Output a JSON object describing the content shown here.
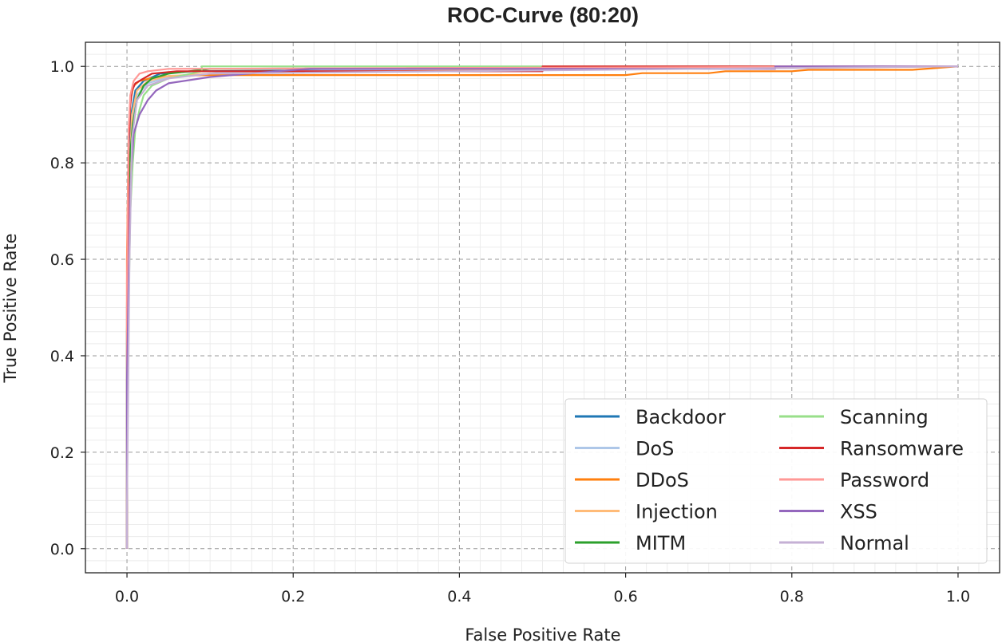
{
  "chart_data": {
    "type": "line",
    "title": "ROC-Curve (80:20)",
    "xlabel": "False Positive Rate",
    "ylabel": "True Positive Rate",
    "xlim": [
      -0.05,
      1.05
    ],
    "ylim": [
      -0.05,
      1.05
    ],
    "xticks": [
      0.0,
      0.2,
      0.4,
      0.6,
      0.8,
      1.0
    ],
    "yticks": [
      0.0,
      0.2,
      0.4,
      0.6,
      0.8,
      1.0
    ],
    "xtick_labels": [
      "0.0",
      "0.2",
      "0.4",
      "0.6",
      "0.8",
      "1.0"
    ],
    "ytick_labels": [
      "0.0",
      "0.2",
      "0.4",
      "0.6",
      "0.8",
      "1.0"
    ],
    "grid": true,
    "legend_position": "bottom-right",
    "series": [
      {
        "name": "Backdoor",
        "color": "#1f77b4",
        "x": [
          0.0,
          0.0,
          0.002,
          0.005,
          0.01,
          0.02,
          0.04,
          0.08,
          1.0
        ],
        "y": [
          0.0,
          0.5,
          0.8,
          0.9,
          0.95,
          0.97,
          0.985,
          0.99,
          1.0
        ]
      },
      {
        "name": "DoS",
        "color": "#aec7e8",
        "x": [
          0.0,
          0.0,
          0.003,
          0.006,
          0.012,
          0.025,
          0.05,
          0.12,
          0.3,
          1.0
        ],
        "y": [
          0.0,
          0.3,
          0.75,
          0.88,
          0.94,
          0.965,
          0.978,
          0.988,
          0.993,
          1.0
        ]
      },
      {
        "name": "DDoS",
        "color": "#ff7f0e",
        "x": [
          0.0,
          0.0,
          0.002,
          0.004,
          0.008,
          0.015,
          0.03,
          0.05,
          0.1,
          0.2,
          0.4,
          0.6,
          0.62,
          0.7,
          0.72,
          0.8,
          0.82,
          0.945,
          1.0
        ],
        "y": [
          0.0,
          0.6,
          0.85,
          0.93,
          0.96,
          0.97,
          0.976,
          0.98,
          0.982,
          0.982,
          0.982,
          0.982,
          0.986,
          0.986,
          0.99,
          0.99,
          0.993,
          0.993,
          1.0
        ]
      },
      {
        "name": "Injection",
        "color": "#ffbb78",
        "x": [
          0.0,
          0.0,
          0.003,
          0.006,
          0.012,
          0.025,
          0.05,
          0.1,
          0.3,
          1.0
        ],
        "y": [
          0.0,
          0.4,
          0.78,
          0.9,
          0.95,
          0.97,
          0.98,
          0.985,
          0.99,
          1.0
        ]
      },
      {
        "name": "MITM",
        "color": "#2ca02c",
        "x": [
          0.0,
          0.0,
          0.003,
          0.007,
          0.012,
          0.02,
          0.03,
          0.05,
          0.1,
          1.0
        ],
        "y": [
          0.0,
          0.45,
          0.8,
          0.88,
          0.93,
          0.96,
          0.975,
          0.985,
          0.995,
          1.0
        ]
      },
      {
        "name": "Scanning",
        "color": "#98df8a",
        "x": [
          0.0,
          0.0,
          0.004,
          0.007,
          0.01,
          0.015,
          0.02,
          0.03,
          0.05,
          0.09,
          0.09,
          1.0
        ],
        "y": [
          0.0,
          0.3,
          0.7,
          0.8,
          0.87,
          0.91,
          0.94,
          0.96,
          0.975,
          0.99,
          1.0,
          1.0
        ]
      },
      {
        "name": "Ransomware",
        "color": "#d62728",
        "x": [
          0.0,
          0.0,
          0.002,
          0.004,
          0.006,
          0.01,
          0.02,
          0.03,
          0.06,
          0.5,
          0.5,
          1.0
        ],
        "y": [
          0.0,
          0.12,
          0.84,
          0.92,
          0.95,
          0.965,
          0.975,
          0.985,
          0.99,
          0.99,
          1.0,
          1.0
        ]
      },
      {
        "name": "Password",
        "color": "#ff9896",
        "x": [
          0.0,
          0.0,
          0.002,
          0.004,
          0.008,
          0.015,
          0.025,
          0.05,
          1.0
        ],
        "y": [
          0.0,
          0.55,
          0.87,
          0.94,
          0.97,
          0.985,
          0.99,
          0.995,
          1.0
        ]
      },
      {
        "name": "XSS",
        "color": "#9467bd",
        "x": [
          0.0,
          0.0,
          0.004,
          0.008,
          0.015,
          0.025,
          0.035,
          0.05,
          0.1,
          0.18,
          0.22,
          0.78,
          0.78,
          1.0
        ],
        "y": [
          0.0,
          0.35,
          0.75,
          0.86,
          0.9,
          0.93,
          0.95,
          0.965,
          0.978,
          0.99,
          0.995,
          0.995,
          1.0,
          1.0
        ]
      },
      {
        "name": "Normal",
        "color": "#c5b0d5",
        "x": [
          0.0,
          0.0,
          0.003,
          0.006,
          0.012,
          0.025,
          0.05,
          0.1,
          1.0
        ],
        "y": [
          0.0,
          0.08,
          0.6,
          0.85,
          0.93,
          0.96,
          0.975,
          0.985,
          1.0
        ]
      }
    ]
  }
}
